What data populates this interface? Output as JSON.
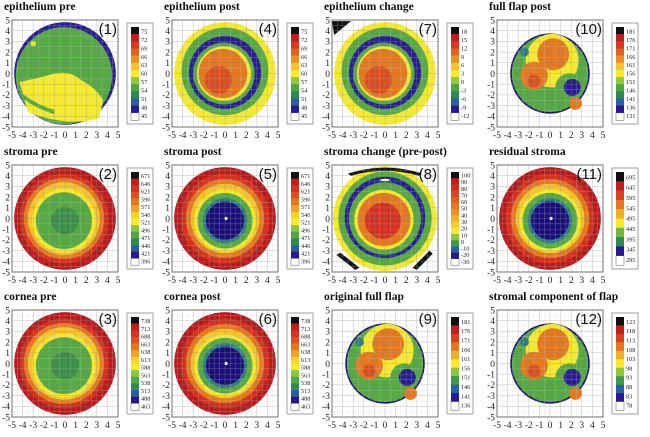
{
  "figure": {
    "description": "Corneal thickness maps: epithelium, stroma, cornea, flap (12 panels)"
  },
  "chart_data": [
    {
      "id": 1,
      "type": "heatmap",
      "title": "epithelium pre",
      "number_label": "(1)",
      "xlim": [
        -5,
        5
      ],
      "ylim": [
        -5,
        5
      ],
      "xticks": [
        "-5",
        "-4",
        "-3",
        "-2",
        "-1",
        "0",
        "1",
        "2",
        "3",
        "4",
        "5"
      ],
      "yticks": [
        "5",
        "4",
        "3",
        "2",
        "1",
        "0",
        "-1",
        "-2",
        "-3",
        "-4",
        "-5"
      ],
      "colorbar_labels": [
        "75",
        "72",
        "69",
        "66",
        "63",
        "60",
        "57",
        "54",
        "51",
        "48",
        "45"
      ],
      "colorbar_range": [
        45,
        75
      ],
      "pattern": "epi_pre",
      "grid": true
    },
    {
      "id": 4,
      "type": "heatmap",
      "title": "epithelium post",
      "number_label": "(4)",
      "xlim": [
        -5,
        5
      ],
      "ylim": [
        -5,
        5
      ],
      "xticks": [
        "-5",
        "-4",
        "-3",
        "-2",
        "-1",
        "0",
        "1",
        "2",
        "3",
        "4",
        "5"
      ],
      "yticks": [
        "5",
        "4",
        "3",
        "2",
        "1",
        "0",
        "-1",
        "-2",
        "-3",
        "-4",
        "-5"
      ],
      "colorbar_labels": [
        "75",
        "72",
        "69",
        "66",
        "63",
        "60",
        "57",
        "54",
        "51",
        "48",
        "45"
      ],
      "colorbar_range": [
        45,
        75
      ],
      "pattern": "epi_post",
      "grid": true
    },
    {
      "id": 7,
      "type": "heatmap",
      "title": "epithelium change",
      "number_label": "(7)",
      "xlim": [
        -5,
        5
      ],
      "ylim": [
        -5,
        5
      ],
      "xticks": [
        "-5",
        "-4",
        "-3",
        "-2",
        "-1",
        "0",
        "1",
        "2",
        "3",
        "4",
        "5"
      ],
      "yticks": [
        "5",
        "4",
        "3",
        "2",
        "1",
        "0",
        "-1",
        "-2",
        "-3",
        "-4",
        "-5"
      ],
      "colorbar_labels": [
        "18",
        "15",
        "12",
        "9",
        "6",
        "3",
        "0",
        "-3",
        "-6",
        "-9",
        "-12"
      ],
      "colorbar_range": [
        -12,
        18
      ],
      "pattern": "epi_change",
      "grid": true
    },
    {
      "id": 10,
      "type": "heatmap",
      "title": "full flap post",
      "number_label": "(10)",
      "xlim": [
        -5,
        5
      ],
      "ylim": [
        -5,
        5
      ],
      "xticks": [
        "-5",
        "-4",
        "-3",
        "-2",
        "-1",
        "0",
        "1",
        "2",
        "3",
        "4",
        "5"
      ],
      "yticks": [
        "5",
        "4",
        "3",
        "2",
        "1",
        "0",
        "-1",
        "-2",
        "-3",
        "-4",
        "-5"
      ],
      "colorbar_labels": [
        "181",
        "176",
        "171",
        "166",
        "161",
        "156",
        "151",
        "146",
        "141",
        "136",
        "131"
      ],
      "colorbar_range": [
        131,
        181
      ],
      "pattern": "flap",
      "grid": true
    },
    {
      "id": 2,
      "type": "heatmap",
      "title": "stroma pre",
      "number_label": "(2)",
      "xlim": [
        -5,
        5
      ],
      "ylim": [
        -5,
        5
      ],
      "xticks": [
        "-5",
        "-4",
        "-3",
        "-2",
        "-1",
        "0",
        "1",
        "2",
        "3",
        "4",
        "5"
      ],
      "yticks": [
        "5",
        "4",
        "3",
        "2",
        "1",
        "0",
        "-1",
        "-2",
        "-3",
        "-4",
        "-5"
      ],
      "colorbar_labels": [
        "671",
        "646",
        "621",
        "596",
        "571",
        "546",
        "521",
        "496",
        "471",
        "446",
        "421",
        "396"
      ],
      "colorbar_range": [
        396,
        671
      ],
      "pattern": "pre_bowl",
      "grid": true
    },
    {
      "id": 5,
      "type": "heatmap",
      "title": "stroma  post",
      "number_label": "(5)",
      "xlim": [
        -5,
        5
      ],
      "ylim": [
        -5,
        5
      ],
      "xticks": [
        "-5",
        "-4",
        "-3",
        "-2",
        "-1",
        "0",
        "1",
        "2",
        "3",
        "4",
        "5"
      ],
      "yticks": [
        "5",
        "4",
        "3",
        "2",
        "1",
        "0",
        "-1",
        "-2",
        "-3",
        "-4",
        "-5"
      ],
      "colorbar_labels": [
        "671",
        "646",
        "621",
        "596",
        "571",
        "546",
        "521",
        "496",
        "471",
        "446",
        "421",
        "396"
      ],
      "colorbar_range": [
        396,
        671
      ],
      "pattern": "post_bowl",
      "grid": true
    },
    {
      "id": 8,
      "type": "heatmap",
      "title": "stroma change (pre-post)",
      "number_label": "(8)",
      "xlim": [
        -5,
        5
      ],
      "ylim": [
        -5,
        5
      ],
      "xticks": [
        "-5",
        "-4",
        "-3",
        "-2",
        "-1",
        "0",
        "1",
        "2",
        "3",
        "4",
        "5"
      ],
      "yticks": [
        "5",
        "4",
        "3",
        "2",
        "1",
        "0",
        "-1",
        "-2",
        "-3",
        "-4",
        "-5"
      ],
      "colorbar_labels": [
        "100",
        "90",
        "80",
        "70",
        "60",
        "50",
        "40",
        "30",
        "20",
        "10",
        "0",
        "-10",
        "-20",
        "-30"
      ],
      "colorbar_range": [
        -30,
        100
      ],
      "pattern": "stroma_change",
      "grid": true
    },
    {
      "id": 11,
      "type": "heatmap",
      "title": "residual stroma",
      "number_label": "(11)",
      "xlim": [
        -5,
        5
      ],
      "ylim": [
        -5,
        5
      ],
      "xticks": [
        "-5",
        "-4",
        "-3",
        "-2",
        "-1",
        "0",
        "1",
        "2",
        "3",
        "4",
        "5"
      ],
      "yticks": [
        "5",
        "4",
        "3",
        "2",
        "1",
        "0",
        "-1",
        "-2",
        "-3",
        "-4",
        "-5"
      ],
      "colorbar_labels": [
        "695",
        "645",
        "595",
        "545",
        "495",
        "445",
        "395",
        "345",
        "295"
      ],
      "colorbar_range": [
        295,
        695
      ],
      "pattern": "post_bowl",
      "grid": true
    },
    {
      "id": 3,
      "type": "heatmap",
      "title": "cornea pre",
      "number_label": "(3)",
      "xlim": [
        -5,
        5
      ],
      "ylim": [
        -5,
        5
      ],
      "xticks": [
        "-5",
        "-4",
        "-3",
        "-2",
        "-1",
        "0",
        "1",
        "2",
        "3",
        "4",
        "5"
      ],
      "yticks": [
        "5",
        "4",
        "3",
        "2",
        "1",
        "0",
        "-1",
        "-2",
        "-3",
        "-4",
        "-5"
      ],
      "colorbar_labels": [
        "738",
        "713",
        "688",
        "663",
        "638",
        "613",
        "588",
        "563",
        "538",
        "513",
        "488",
        "463"
      ],
      "colorbar_range": [
        463,
        738
      ],
      "pattern": "pre_bowl",
      "grid": true
    },
    {
      "id": 6,
      "type": "heatmap",
      "title": "cornea post",
      "number_label": "(6)",
      "xlim": [
        -5,
        5
      ],
      "ylim": [
        -5,
        5
      ],
      "xticks": [
        "-5",
        "-4",
        "-3",
        "-2",
        "-1",
        "0",
        "1",
        "2",
        "3",
        "4",
        "5"
      ],
      "yticks": [
        "5",
        "4",
        "3",
        "2",
        "1",
        "0",
        "-1",
        "-2",
        "-3",
        "-4",
        "-5"
      ],
      "colorbar_labels": [
        "738",
        "713",
        "688",
        "663",
        "638",
        "613",
        "588",
        "563",
        "538",
        "513",
        "488",
        "463"
      ],
      "colorbar_range": [
        463,
        738
      ],
      "pattern": "post_bowl",
      "grid": true
    },
    {
      "id": 9,
      "type": "heatmap",
      "title": "original full flap",
      "number_label": "(9)",
      "xlim": [
        -5,
        5
      ],
      "ylim": [
        -5,
        5
      ],
      "xticks": [
        "-5",
        "-4",
        "-3",
        "-2",
        "-1",
        "0",
        "1",
        "2",
        "3",
        "4",
        "5"
      ],
      "yticks": [
        "5",
        "4",
        "3",
        "2",
        "1",
        "0",
        "-1",
        "-2",
        "-3",
        "-4",
        "-5"
      ],
      "colorbar_labels": [
        "181",
        "176",
        "171",
        "166",
        "161",
        "156",
        "151",
        "146",
        "141",
        "136"
      ],
      "colorbar_range": [
        136,
        181
      ],
      "pattern": "flap",
      "grid": true
    },
    {
      "id": 12,
      "type": "heatmap",
      "title": "stromal component of flap",
      "number_label": "(12)",
      "xlim": [
        -5,
        5
      ],
      "ylim": [
        -5,
        5
      ],
      "xticks": [
        "-5",
        "-4",
        "-3",
        "-2",
        "-1",
        "0",
        "1",
        "2",
        "3",
        "4",
        "5"
      ],
      "yticks": [
        "5",
        "4",
        "3",
        "2",
        "1",
        "0",
        "-1",
        "-2",
        "-3",
        "-4",
        "-5"
      ],
      "colorbar_labels": [
        "123",
        "118",
        "113",
        "108",
        "103",
        "98",
        "93",
        "88",
        "83",
        "78"
      ],
      "colorbar_range": [
        78,
        123
      ],
      "pattern": "flap",
      "grid": true
    }
  ],
  "palette": [
    "#000000",
    "#b0151a",
    "#d42a1e",
    "#d8481c",
    "#e0701e",
    "#e89a22",
    "#f0c52a",
    "#f8ec2a",
    "#9ccb3a",
    "#4fa83c",
    "#2f8f45",
    "#2a6f8a",
    "#2838a0",
    "#22138a",
    "#ffffff"
  ]
}
